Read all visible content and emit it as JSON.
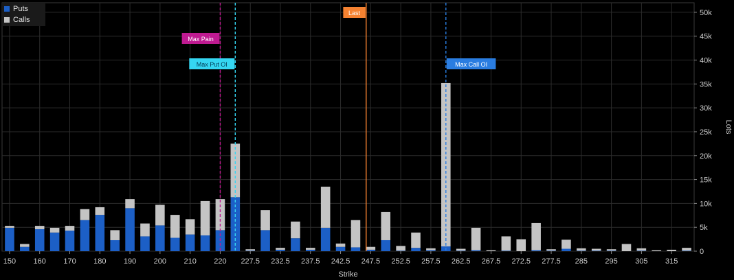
{
  "chart_data": {
    "type": "bar",
    "stacked": true,
    "xlabel": "Strike",
    "ylabel": "Lots",
    "ylim": [
      0,
      52000
    ],
    "yticks": [
      "0",
      "5k",
      "10k",
      "15k",
      "20k",
      "25k",
      "30k",
      "35k",
      "40k",
      "45k",
      "50k"
    ],
    "ytick_values": [
      0,
      5000,
      10000,
      15000,
      20000,
      25000,
      30000,
      35000,
      40000,
      45000,
      50000
    ],
    "xtick_labels": [
      "150",
      "160",
      "170",
      "180",
      "190",
      "200",
      "210",
      "220",
      "227.5",
      "232.5",
      "237.5",
      "242.5",
      "247.5",
      "252.5",
      "257.5",
      "262.5",
      "267.5",
      "272.5",
      "277.5",
      "285",
      "295",
      "305",
      "315"
    ],
    "categories": [
      "150",
      "155",
      "160",
      "165",
      "170",
      "175",
      "180",
      "185",
      "190",
      "195",
      "200",
      "205",
      "210",
      "215",
      "220",
      "225",
      "227.5",
      "230",
      "232.5",
      "235",
      "237.5",
      "240",
      "242.5",
      "245",
      "247.5",
      "250",
      "252.5",
      "255",
      "257.5",
      "260",
      "262.5",
      "265",
      "267.5",
      "270",
      "272.5",
      "275",
      "277.5",
      "280",
      "285",
      "290",
      "295",
      "300",
      "305",
      "310",
      "315",
      "320"
    ],
    "series": [
      {
        "name": "Puts",
        "color": "#1c5fc6",
        "values": [
          4900,
          900,
          4600,
          3900,
          4300,
          6500,
          7600,
          2300,
          9000,
          3100,
          5400,
          2800,
          3500,
          3300,
          4400,
          11300,
          100,
          4400,
          300,
          2700,
          300,
          4900,
          900,
          800,
          300,
          2300,
          100,
          700,
          200,
          1000,
          100,
          200,
          0,
          100,
          0,
          200,
          100,
          500,
          100,
          100,
          100,
          0,
          100,
          0,
          0,
          100
        ]
      },
      {
        "name": "Calls",
        "color": "#c4c4c4",
        "values": [
          400,
          600,
          700,
          1000,
          1000,
          2300,
          1600,
          2100,
          1900,
          2700,
          4300,
          4800,
          3200,
          7200,
          6500,
          11200,
          300,
          4200,
          400,
          3500,
          400,
          8600,
          700,
          5700,
          600,
          5900,
          1000,
          3200,
          400,
          34200,
          400,
          4700,
          200,
          3000,
          2500,
          5700,
          300,
          1900,
          500,
          400,
          300,
          1500,
          500,
          200,
          300,
          600
        ]
      }
    ],
    "annotations": [
      {
        "label": "Last",
        "strike": 246.75,
        "color": "#f58231",
        "style": "solid"
      },
      {
        "label": "Max Pain",
        "strike": 220,
        "color": "#bf1a91",
        "style": "dashed"
      },
      {
        "label": "Max Put OI",
        "strike": 225,
        "color": "#35d6f2",
        "style": "dashed"
      },
      {
        "label": "Max Call OI",
        "strike": 260,
        "color": "#2a7de1",
        "style": "dashed"
      }
    ],
    "legend_position": "top-left",
    "grid": true
  }
}
